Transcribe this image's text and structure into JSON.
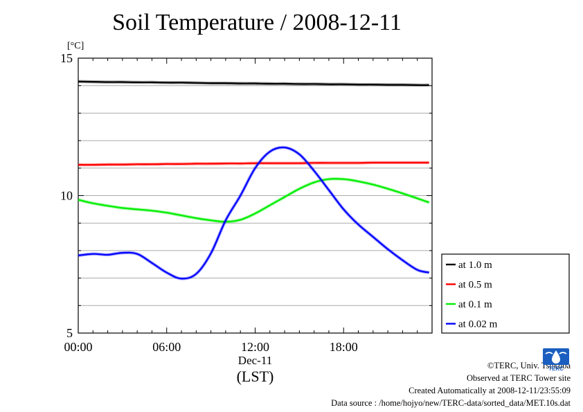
{
  "chart_data": {
    "type": "line",
    "title": "Soil Temperature / 2008-12-11",
    "ylabel": "[°C]",
    "xlabel_date": "Dec-11",
    "xlabel_unit": "(LST)",
    "xlim": [
      "00:00",
      "24:00"
    ],
    "ylim": [
      5,
      15
    ],
    "yticks": [
      "5",
      "10",
      "15"
    ],
    "xticks": [
      "00:00",
      "06:00",
      "12:00",
      "18:00"
    ],
    "grid": true,
    "legend_position": "right",
    "x": [
      0,
      1,
      2,
      3,
      4,
      5,
      6,
      7,
      8,
      9,
      10,
      11,
      12,
      13,
      14,
      15,
      16,
      17,
      18,
      19,
      20,
      21,
      22,
      23,
      23.8
    ],
    "series": [
      {
        "name": "at 1.0 m",
        "color": "#000000",
        "values": [
          14.15,
          14.14,
          14.13,
          14.13,
          14.12,
          14.12,
          14.11,
          14.11,
          14.1,
          14.09,
          14.09,
          14.08,
          14.08,
          14.07,
          14.07,
          14.06,
          14.06,
          14.05,
          14.05,
          14.04,
          14.04,
          14.03,
          14.03,
          14.02,
          14.02
        ]
      },
      {
        "name": "at 0.5 m",
        "color": "#ff0000",
        "values": [
          11.12,
          11.12,
          11.13,
          11.13,
          11.14,
          11.14,
          11.15,
          11.15,
          11.16,
          11.16,
          11.17,
          11.17,
          11.18,
          11.18,
          11.18,
          11.18,
          11.19,
          11.19,
          11.19,
          11.19,
          11.2,
          11.2,
          11.2,
          11.2,
          11.2
        ]
      },
      {
        "name": "at 0.1 m",
        "color": "#00ee00",
        "values": [
          9.85,
          9.72,
          9.63,
          9.55,
          9.5,
          9.45,
          9.38,
          9.28,
          9.18,
          9.1,
          9.05,
          9.12,
          9.35,
          9.65,
          9.95,
          10.25,
          10.48,
          10.6,
          10.6,
          10.52,
          10.4,
          10.25,
          10.08,
          9.9,
          9.75
        ]
      },
      {
        "name": "at 0.02 m",
        "color": "#0000ff",
        "values": [
          7.82,
          7.88,
          7.85,
          7.92,
          7.88,
          7.55,
          7.2,
          6.98,
          7.15,
          7.9,
          9.1,
          10.0,
          11.0,
          11.6,
          11.75,
          11.5,
          10.9,
          10.2,
          9.5,
          8.95,
          8.5,
          8.05,
          7.65,
          7.3,
          7.2
        ]
      }
    ]
  },
  "credits": {
    "copyright": "©TERC, Univ. Tsukuba",
    "observed": "Observed at TERC Tower site",
    "created": "Created Automatically at 2008-12-11/23:55:09",
    "source": "Data source : /home/hojyo/new/TERC-data/sorted_data/MET.10s.dat"
  },
  "logo": {
    "text": "TERC",
    "color": "#1a5fc0"
  }
}
